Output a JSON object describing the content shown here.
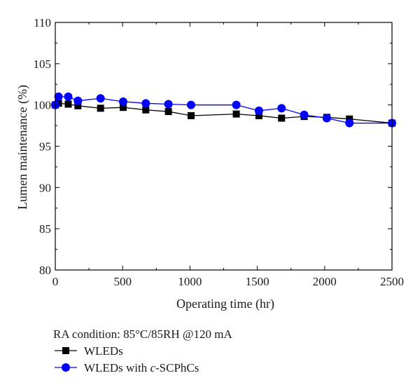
{
  "chart_data": {
    "type": "line",
    "xlabel": "Operating time (hr)",
    "ylabel": "Lumen maintenance (%)",
    "xlim": [
      0,
      2500
    ],
    "ylim": [
      80,
      110
    ],
    "xticks": [
      0,
      500,
      1000,
      1500,
      2000,
      2500
    ],
    "yticks": [
      80,
      85,
      90,
      95,
      100,
      105,
      110
    ],
    "grid": false,
    "legend_title": "RA condition: 85°C/85RH @120 mA",
    "legend_position": "bottom-left, below chart",
    "series": [
      {
        "name": "WLEDs",
        "label_plain": "WLEDs",
        "color": "#000000",
        "marker": "square",
        "x": [
          0,
          24,
          96,
          168,
          336,
          504,
          672,
          840,
          1008,
          1344,
          1512,
          1680,
          1848,
          2016,
          2184,
          2500
        ],
        "y": [
          100.0,
          100.2,
          100.1,
          99.9,
          99.6,
          99.7,
          99.4,
          99.2,
          98.7,
          98.9,
          98.7,
          98.4,
          98.6,
          98.5,
          98.3,
          97.8
        ]
      },
      {
        "name": "WLEDs with c-SCPhCs",
        "label_plain": "WLEDs with ",
        "label_italic": "c",
        "label_suffix": "-SCPhCs",
        "color": "#0000ff",
        "marker": "circle",
        "x": [
          0,
          24,
          96,
          168,
          336,
          504,
          672,
          840,
          1008,
          1344,
          1512,
          1680,
          1848,
          2016,
          2184,
          2500
        ],
        "y": [
          100.0,
          101.0,
          101.0,
          100.5,
          100.8,
          100.4,
          100.2,
          100.1,
          100.0,
          100.0,
          99.3,
          99.6,
          98.8,
          98.4,
          97.8,
          97.8
        ]
      }
    ]
  }
}
